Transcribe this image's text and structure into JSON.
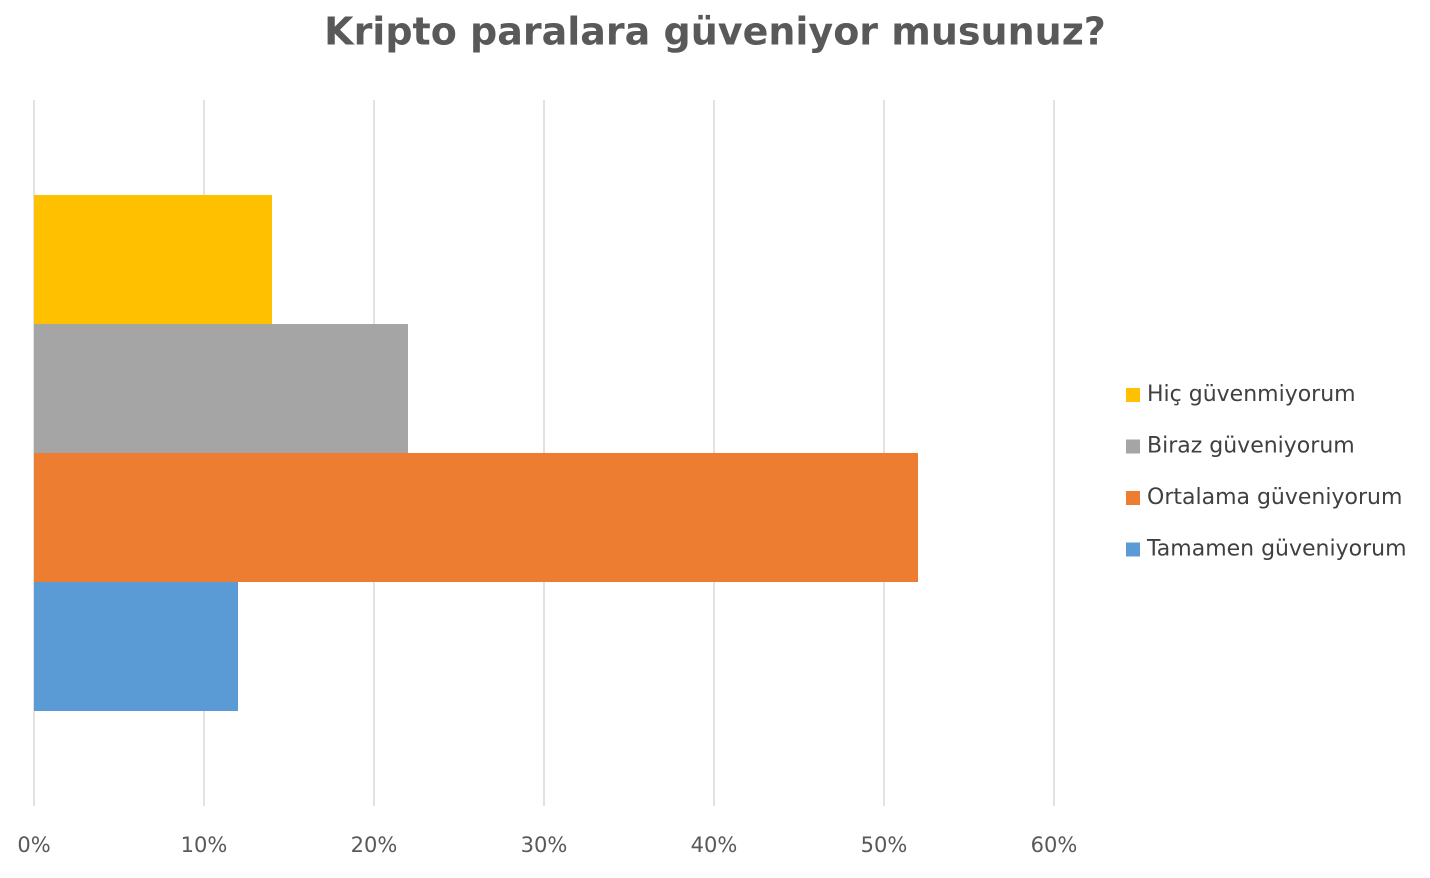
{
  "chart_data": {
    "type": "barh",
    "title": "Kripto paralara güveniyor musunuz?",
    "categories": [
      null
    ],
    "series": [
      {
        "name": "Hiç güvenmiyorum",
        "color": "#ffc000",
        "values": [
          14
        ]
      },
      {
        "name": "Biraz güveniyorum",
        "color": "#a5a5a5",
        "values": [
          22
        ]
      },
      {
        "name": "Ortalama güveniyorum",
        "color": "#ed7d31",
        "values": [
          52
        ]
      },
      {
        "name": "Tamamen güveniyorum",
        "color": "#5b9bd5",
        "values": [
          12
        ]
      }
    ],
    "xlim": [
      0,
      60
    ],
    "xticks": [
      {
        "value": 0,
        "label": "0%"
      },
      {
        "value": 10,
        "label": "10%"
      },
      {
        "value": 20,
        "label": "20%"
      },
      {
        "value": 30,
        "label": "30%"
      },
      {
        "value": 40,
        "label": "40%"
      },
      {
        "value": 50,
        "label": "50%"
      },
      {
        "value": 60,
        "label": "60%"
      }
    ],
    "grid": true,
    "legend": "right"
  }
}
